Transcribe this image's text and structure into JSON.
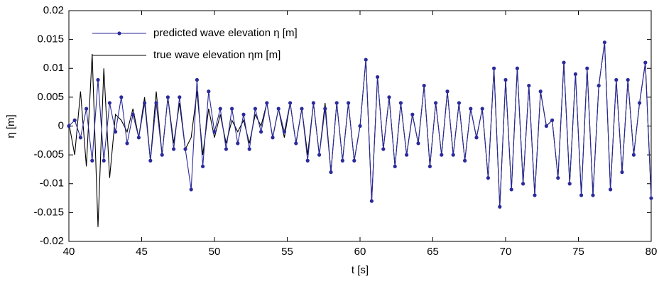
{
  "chart_data": {
    "type": "line",
    "xlabel": "t [s]",
    "ylabel": "η [m]",
    "xlim": [
      40,
      80
    ],
    "xticks": [
      40,
      45,
      50,
      55,
      60,
      65,
      70,
      75,
      80
    ],
    "ylim": [
      -0.02,
      0.02
    ],
    "yticks": [
      -0.02,
      -0.015,
      -0.01,
      -0.005,
      0,
      0.005,
      0.01,
      0.015,
      0.02
    ],
    "legend": "upper left",
    "x": [
      40,
      40.4,
      40.8,
      41.2,
      41.6,
      42,
      42.4,
      42.8,
      43.2,
      43.6,
      44,
      44.4,
      44.8,
      45.2,
      45.6,
      46,
      46.4,
      46.8,
      47.2,
      47.6,
      48,
      48.4,
      48.8,
      49.2,
      49.6,
      50,
      50.4,
      50.8,
      51.2,
      51.6,
      52,
      52.4,
      52.8,
      53.2,
      53.6,
      54,
      54.4,
      54.8,
      55.2,
      55.6,
      56,
      56.4,
      56.8,
      57.2,
      57.6,
      58,
      58.4,
      58.8,
      59.2,
      59.6,
      60,
      60.4,
      60.8,
      61.2,
      61.6,
      62,
      62.4,
      62.8,
      63.2,
      63.6,
      64,
      64.4,
      64.8,
      65.2,
      65.6,
      66,
      66.4,
      66.8,
      67.2,
      67.6,
      68,
      68.4,
      68.8,
      69.2,
      69.6,
      70,
      70.4,
      70.8,
      71.2,
      71.6,
      72,
      72.4,
      72.8,
      73.2,
      73.6,
      74,
      74.4,
      74.8,
      75.2,
      75.6,
      76,
      76.4,
      76.8,
      77.2,
      77.6,
      78,
      78.4,
      78.8,
      79.2,
      79.6,
      80
    ],
    "series": [
      {
        "name": "predicted wave elevation η [m]",
        "color": "#2a2a9c",
        "marker": true,
        "values": [
          0,
          0.001,
          -0.002,
          0.003,
          -0.006,
          0.008,
          -0.006,
          0.004,
          -0.001,
          0.005,
          -0.003,
          0.002,
          -0.002,
          0.004,
          -0.006,
          0.004,
          -0.005,
          0.005,
          -0.004,
          0.005,
          -0.004,
          -0.011,
          0.008,
          -0.007,
          0.006,
          -0.001,
          0.003,
          -0.004,
          0.003,
          -0.003,
          0.002,
          -0.004,
          0.003,
          -0.001,
          0.004,
          -0.002,
          0.003,
          -0.001,
          0.004,
          -0.003,
          0.003,
          -0.006,
          0.004,
          -0.005,
          0.003,
          -0.008,
          0.004,
          -0.006,
          0.004,
          -0.006,
          0,
          0.0115,
          -0.013,
          0.0085,
          -0.004,
          0.005,
          -0.007,
          0.004,
          -0.005,
          0.002,
          -0.003,
          0.007,
          -0.007,
          0.004,
          -0.005,
          0.006,
          -0.005,
          0.004,
          -0.006,
          0.003,
          -0.002,
          0.003,
          -0.009,
          0.01,
          -0.014,
          0.008,
          -0.011,
          0.01,
          -0.01,
          0.007,
          -0.012,
          0.006,
          0,
          0.001,
          -0.009,
          0.011,
          -0.01,
          0.009,
          -0.012,
          0.01,
          -0.012,
          0.007,
          0.0145,
          -0.011,
          0.008,
          -0.008,
          0.008,
          -0.005,
          0.004,
          0.011,
          -0.0125
        ]
      },
      {
        "name": "true wave elevation ηm [m]",
        "color": "#000000",
        "marker": false,
        "values": [
          0.0005,
          -0.005,
          0.006,
          -0.007,
          0.0125,
          -0.0175,
          0.01,
          -0.009,
          0.002,
          0.001,
          -0.001,
          0.003,
          -0.002,
          0.005,
          -0.006,
          0.006,
          -0.005,
          0.005,
          -0.003,
          0.004,
          -0.004,
          -0.002,
          0.006,
          -0.005,
          0.003,
          -0.002,
          0.002,
          -0.003,
          0.001,
          -0.001,
          0.001,
          -0.003,
          0.002,
          0,
          0.004,
          -0.002,
          0.003,
          -0.002,
          0.004,
          -0.003,
          0.003,
          -0.005,
          0.004,
          -0.005,
          0.004,
          -0.008,
          0.004,
          -0.006,
          0.004,
          -0.006,
          0,
          0.0115,
          -0.013,
          0.0085,
          -0.004,
          0.005,
          -0.007,
          0.004,
          -0.005,
          0.002,
          -0.003,
          0.007,
          -0.007,
          0.004,
          -0.005,
          0.006,
          -0.005,
          0.004,
          -0.006,
          0.003,
          -0.002,
          0.003,
          -0.009,
          0.01,
          -0.014,
          0.008,
          -0.011,
          0.01,
          -0.01,
          0.007,
          -0.012,
          0.006,
          0,
          0.001,
          -0.009,
          0.011,
          -0.01,
          0.009,
          -0.012,
          0.01,
          -0.012,
          0.007,
          0.0145,
          -0.011,
          0.008,
          -0.008,
          0.008,
          -0.005,
          0.004,
          0.011,
          -0.0125
        ]
      }
    ]
  }
}
